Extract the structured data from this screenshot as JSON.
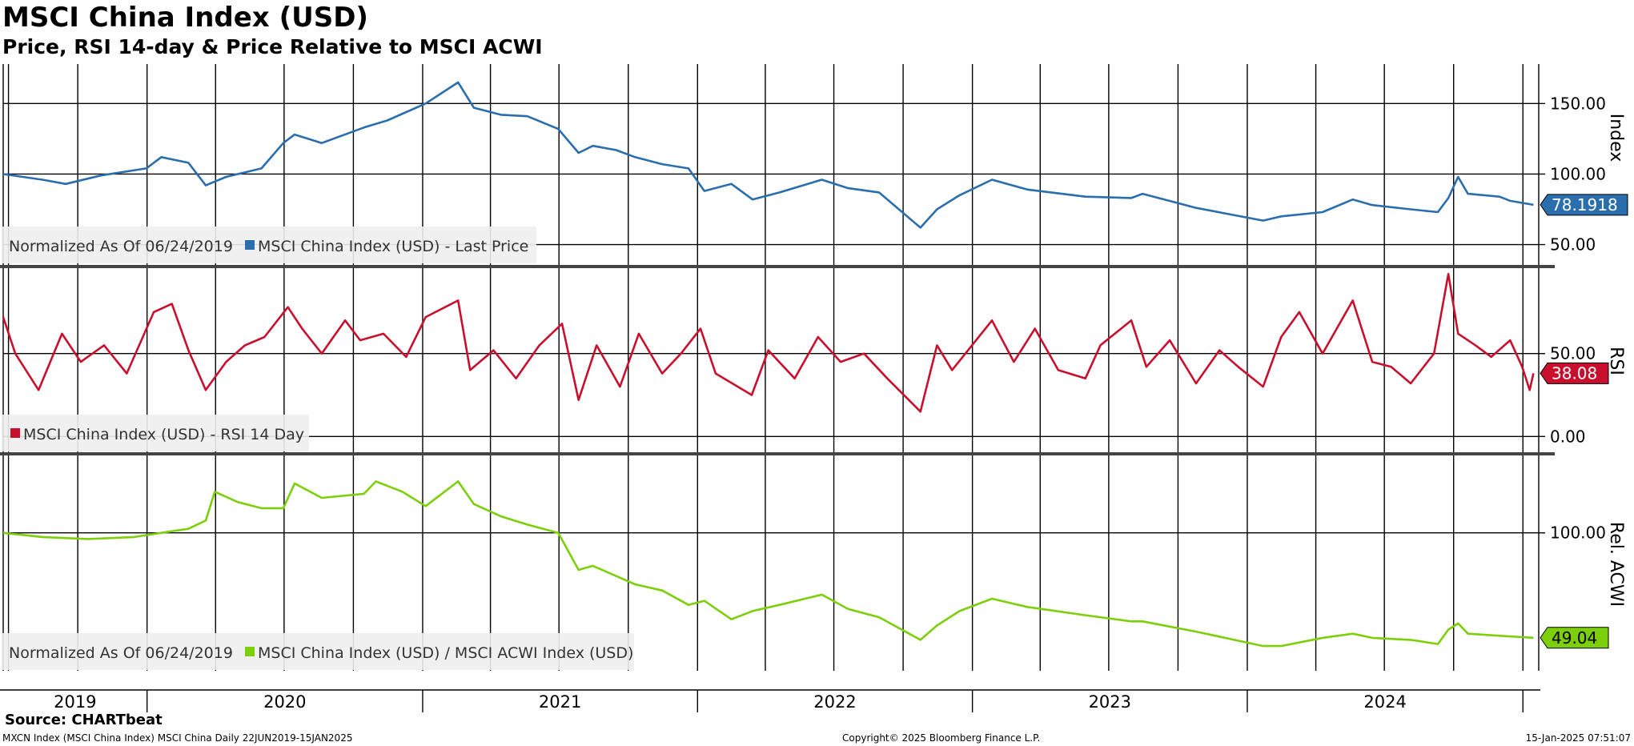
{
  "header": {
    "title": "MSCI China Index (USD)",
    "subtitle": "Price, RSI 14-day & Price Relative to MSCI ACWI"
  },
  "footer": {
    "source": "Source: CHARTbeat",
    "left": "MXCN Index (MSCI China Index) MSCI China  Daily 22JUN2019-15JAN2025",
    "center": "Copyright© 2025 Bloomberg Finance L.P.",
    "right": "15-Jan-2025 07:51:07"
  },
  "chart_data": [
    {
      "type": "line",
      "panel": "price",
      "ylabel": "Index",
      "ylim": [
        35,
        178
      ],
      "yticks": [
        "150.00",
        "100.00",
        "50.00"
      ],
      "ytick_values": [
        150,
        100,
        50
      ],
      "legend_prefix": "Normalized As Of 06/24/2019",
      "legend_placement": "bottom-left",
      "grid": true,
      "series": [
        {
          "name": "MSCI China Index (USD) - Last Price",
          "color": "#2a6ead",
          "last_value_label": "78.1918",
          "x": [
            "2019-06-24",
            "2019-08-15",
            "2019-09-15",
            "2019-11-01",
            "2019-12-31",
            "2020-01-20",
            "2020-02-25",
            "2020-03-19",
            "2020-04-15",
            "2020-06-01",
            "2020-06-30",
            "2020-07-15",
            "2020-08-20",
            "2020-10-15",
            "2020-11-15",
            "2021-01-05",
            "2021-02-17",
            "2021-03-10",
            "2021-04-15",
            "2021-05-20",
            "2021-06-30",
            "2021-07-27",
            "2021-08-15",
            "2021-09-15",
            "2021-10-10",
            "2021-11-15",
            "2021-12-20",
            "2022-01-10",
            "2022-02-15",
            "2022-03-15",
            "2022-04-20",
            "2022-06-15",
            "2022-07-20",
            "2022-08-30",
            "2022-10-24",
            "2022-11-15",
            "2022-12-15",
            "2023-01-27",
            "2023-03-15",
            "2023-05-31",
            "2023-07-31",
            "2023-08-15",
            "2023-10-25",
            "2024-01-22",
            "2024-02-15",
            "2024-04-10",
            "2024-05-20",
            "2024-06-15",
            "2024-08-05",
            "2024-09-10",
            "2024-09-24",
            "2024-10-07",
            "2024-10-20",
            "2024-12-01",
            "2024-12-15",
            "2025-01-15"
          ],
          "y": [
            100,
            96,
            93,
            99,
            104,
            112,
            108,
            92,
            98,
            104,
            122,
            128,
            122,
            133,
            138,
            150,
            165,
            147,
            142,
            141,
            132,
            115,
            120,
            117,
            112,
            107,
            104,
            88,
            93,
            82,
            87,
            96,
            90,
            87,
            62,
            75,
            85,
            96,
            89,
            84,
            83,
            86,
            76,
            67,
            70,
            73,
            82,
            78,
            75,
            73,
            83,
            98,
            86,
            84,
            81,
            78.19
          ]
        }
      ]
    },
    {
      "type": "line",
      "panel": "rsi",
      "ylabel": "RSI",
      "ylim": [
        -10,
        102
      ],
      "yticks": [
        "50.00",
        "0.00"
      ],
      "ytick_values": [
        50,
        0
      ],
      "legend_placement": "bottom-left",
      "grid": true,
      "series": [
        {
          "name": "MSCI China Index (USD) - RSI 14 Day",
          "color": "#c8102e",
          "last_value_label": "38.08",
          "x": [
            "2019-06-24",
            "2019-07-10",
            "2019-08-10",
            "2019-09-10",
            "2019-10-05",
            "2019-11-05",
            "2019-12-05",
            "2020-01-10",
            "2020-02-03",
            "2020-02-25",
            "2020-03-19",
            "2020-04-15",
            "2020-05-10",
            "2020-06-05",
            "2020-07-06",
            "2020-07-25",
            "2020-08-20",
            "2020-09-20",
            "2020-10-10",
            "2020-11-10",
            "2020-12-10",
            "2021-01-05",
            "2021-02-17",
            "2021-03-05",
            "2021-04-05",
            "2021-05-05",
            "2021-06-05",
            "2021-07-05",
            "2021-07-27",
            "2021-08-20",
            "2021-09-20",
            "2021-10-15",
            "2021-11-15",
            "2021-12-10",
            "2022-01-05",
            "2022-01-25",
            "2022-03-14",
            "2022-04-05",
            "2022-05-10",
            "2022-06-10",
            "2022-07-10",
            "2022-08-10",
            "2022-09-10",
            "2022-10-24",
            "2022-11-15",
            "2022-12-05",
            "2023-01-27",
            "2023-02-25",
            "2023-03-25",
            "2023-04-25",
            "2023-05-31",
            "2023-06-20",
            "2023-07-31",
            "2023-08-20",
            "2023-09-20",
            "2023-10-25",
            "2023-11-25",
            "2023-12-20",
            "2024-01-22",
            "2024-02-15",
            "2024-03-10",
            "2024-04-10",
            "2024-05-20",
            "2024-06-15",
            "2024-07-10",
            "2024-08-05",
            "2024-09-05",
            "2024-09-24",
            "2024-10-07",
            "2024-10-30",
            "2024-11-20",
            "2024-12-15",
            "2024-12-31",
            "2025-01-10",
            "2025-01-15"
          ],
          "y": [
            72,
            50,
            28,
            62,
            45,
            55,
            38,
            75,
            80,
            52,
            28,
            45,
            55,
            60,
            78,
            65,
            50,
            70,
            58,
            62,
            48,
            72,
            82,
            40,
            52,
            35,
            55,
            68,
            22,
            55,
            30,
            62,
            38,
            50,
            65,
            38,
            25,
            52,
            35,
            60,
            45,
            50,
            35,
            15,
            55,
            40,
            70,
            45,
            65,
            40,
            35,
            55,
            70,
            42,
            58,
            32,
            52,
            42,
            30,
            60,
            75,
            50,
            82,
            45,
            42,
            32,
            50,
            98,
            62,
            55,
            48,
            58,
            42,
            28,
            38.08
          ]
        }
      ]
    },
    {
      "type": "line",
      "panel": "relative",
      "ylabel": "Rel. ACWI",
      "ylim": [
        33,
        138
      ],
      "yticks": [
        "100.00"
      ],
      "ytick_values": [
        100
      ],
      "legend_prefix": "Normalized As Of 06/24/2019",
      "legend_placement": "bottom-left",
      "grid": true,
      "series": [
        {
          "name": "MSCI China Index (USD) / MSCI ACWI Index (USD)",
          "color": "#7ccf0a",
          "last_value_label": "49.04",
          "x": [
            "2019-06-24",
            "2019-08-15",
            "2019-10-15",
            "2019-12-15",
            "2020-01-20",
            "2020-02-25",
            "2020-03-19",
            "2020-03-31",
            "2020-04-30",
            "2020-06-01",
            "2020-06-30",
            "2020-07-15",
            "2020-08-20",
            "2020-10-15",
            "2020-10-31",
            "2020-12-05",
            "2021-01-05",
            "2021-02-17",
            "2021-03-10",
            "2021-04-15",
            "2021-05-20",
            "2021-06-30",
            "2021-07-27",
            "2021-08-15",
            "2021-09-15",
            "2021-10-10",
            "2021-11-15",
            "2021-12-20",
            "2022-01-10",
            "2022-02-15",
            "2022-03-15",
            "2022-04-20",
            "2022-06-15",
            "2022-07-20",
            "2022-08-30",
            "2022-10-24",
            "2022-11-15",
            "2022-12-15",
            "2023-01-27",
            "2023-03-15",
            "2023-05-31",
            "2023-07-31",
            "2023-08-15",
            "2023-10-25",
            "2024-01-22",
            "2024-02-15",
            "2024-04-10",
            "2024-05-20",
            "2024-06-15",
            "2024-08-05",
            "2024-09-10",
            "2024-09-24",
            "2024-10-07",
            "2024-10-20",
            "2024-12-01",
            "2025-01-15"
          ],
          "y": [
            100,
            98,
            97,
            98,
            100,
            102,
            106,
            120,
            115,
            112,
            112,
            124,
            117,
            119,
            125,
            120,
            113,
            125,
            114,
            108,
            104,
            100,
            82,
            84,
            79,
            75,
            72,
            65,
            67,
            58,
            62,
            65,
            70,
            63,
            59,
            48,
            55,
            62,
            68,
            64,
            60,
            57,
            57,
            52,
            45,
            45,
            49,
            51,
            49,
            48,
            46,
            53,
            56,
            51,
            50,
            49.04
          ]
        }
      ]
    }
  ],
  "xaxis": {
    "range": [
      "2019-06-24",
      "2025-01-22"
    ],
    "year_labels": [
      "2019",
      "2020",
      "2021",
      "2022",
      "2023",
      "2024"
    ]
  }
}
